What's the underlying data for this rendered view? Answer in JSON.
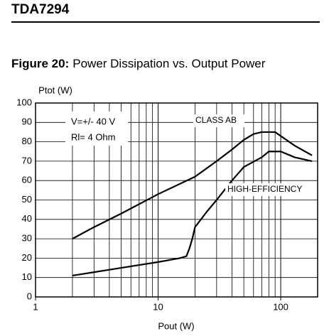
{
  "header": {
    "title": "TDA7294"
  },
  "chart_data": {
    "type": "line",
    "figure_label": "Figure 20:",
    "title": "Power Dissipation vs. Output Power",
    "x_label": "Pout (W)",
    "y_label": "Ptot (W)",
    "xscale": "log",
    "xlim": [
      1,
      200
    ],
    "xticks": [
      1,
      10,
      100
    ],
    "x_minor_grid": true,
    "ylim": [
      0,
      100
    ],
    "yticks": [
      0,
      10,
      20,
      30,
      40,
      50,
      60,
      70,
      80,
      90,
      100
    ],
    "grid": true,
    "annotations": [
      "V=+/- 40 V",
      "Rl= 4 Ohm"
    ],
    "series": [
      {
        "name": "CLASS AB",
        "color": "#000000",
        "x": [
          2,
          3,
          5,
          10,
          20,
          30,
          40,
          50,
          60,
          70,
          90,
          100,
          130,
          180
        ],
        "values": [
          30,
          36,
          43,
          53,
          62,
          70,
          76,
          81,
          84,
          85,
          85,
          83,
          78,
          73
        ]
      },
      {
        "name": "HIGH-EFFICIENCY",
        "color": "#000000",
        "x": [
          2,
          5,
          10,
          15,
          17,
          18,
          19,
          20,
          25,
          30,
          40,
          50,
          70,
          80,
          100,
          130,
          180
        ],
        "values": [
          11,
          15,
          18,
          20,
          21,
          25,
          30,
          36,
          44,
          50,
          60,
          67,
          72,
          75,
          75,
          72,
          70
        ]
      }
    ]
  }
}
